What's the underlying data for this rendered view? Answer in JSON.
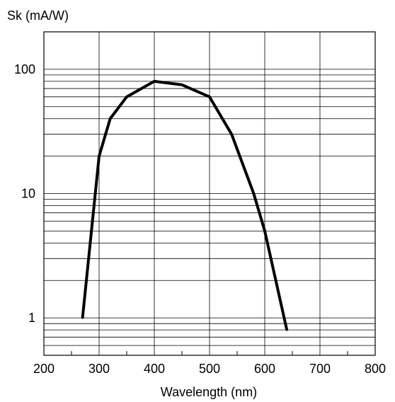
{
  "chart_data": {
    "type": "line",
    "title": "",
    "ylabel": "Sk (mA/W)",
    "xlabel": "Wavelength (nm)",
    "x_scale": "linear",
    "y_scale": "log",
    "xlim": [
      200,
      800
    ],
    "ylim": [
      0.5,
      200
    ],
    "grid": true,
    "x_ticks": [
      200,
      300,
      400,
      500,
      600,
      700,
      800
    ],
    "y_ticks": [
      1,
      10,
      100
    ],
    "x_tick_labels": [
      "200",
      "300",
      "400",
      "500",
      "600",
      "700",
      "800"
    ],
    "y_tick_labels": [
      "1",
      "10",
      "100"
    ],
    "series": [
      {
        "color": "#000000",
        "x": [
          270,
          300,
          320,
          350,
          400,
          450,
          500,
          540,
          580,
          600,
          640
        ],
        "y": [
          1,
          20,
          40,
          60,
          80,
          75,
          60,
          30,
          10,
          5,
          0.8
        ]
      }
    ]
  }
}
